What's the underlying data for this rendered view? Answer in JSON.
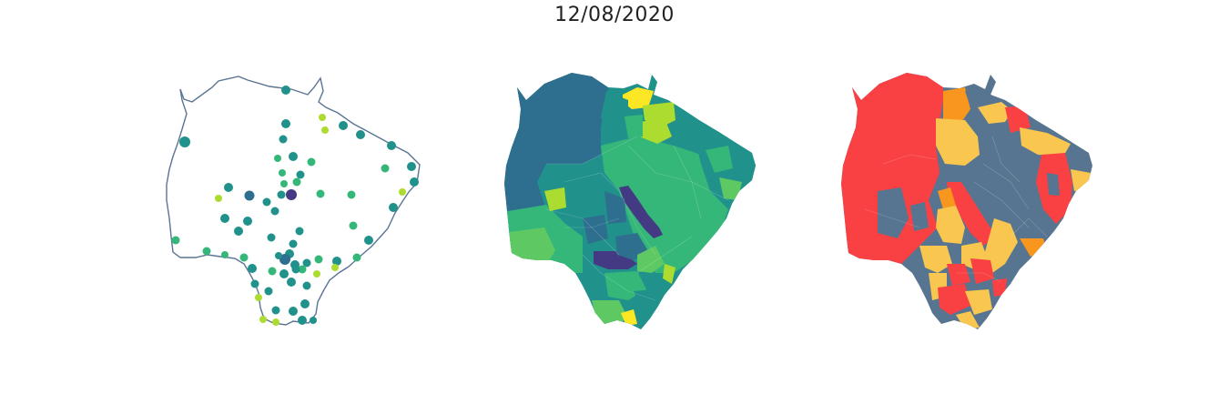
{
  "figure": {
    "title": "12/08/2020"
  },
  "colors": {
    "outline": "#5a7494",
    "viridis_dark": "#443a83",
    "viridis_blue": "#2e6e8e",
    "viridis_teal": "#21918c",
    "viridis_green": "#35b779",
    "viridis_lightgreen": "#5ec962",
    "viridis_lime": "#addc30",
    "viridis_yellow": "#fde725",
    "cat_red": "#f94144",
    "cat_orange": "#f8961e",
    "cat_yellow": "#f9c74f",
    "cat_slate": "#577590"
  },
  "panels": [
    {
      "name": "points-map",
      "style": "outline with municipal point markers"
    },
    {
      "name": "choropleth-viridis",
      "style": "continuous viridis choropleth"
    },
    {
      "name": "choropleth-categorical",
      "style": "categorical choropleth"
    }
  ]
}
